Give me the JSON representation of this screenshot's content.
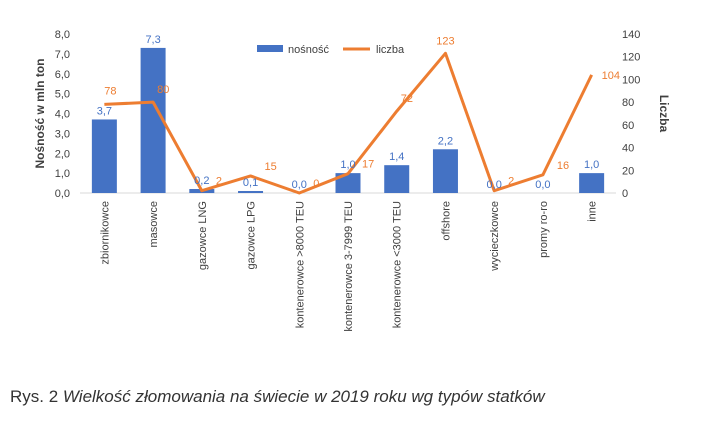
{
  "chart_data": {
    "type": "bar",
    "categories": [
      "zbiornikowce",
      "masowce",
      "gazowce LNG",
      "gazowce LPG",
      "kontenerowce >8000 TEU",
      "kontenerowce  3-7999 TEU",
      "kontenerowce <3000 TEU",
      "offshore",
      "wycieczkowce",
      "promy ro-ro",
      "inne"
    ],
    "series": [
      {
        "name": "nośność",
        "kind": "bar",
        "axis": "left",
        "color": "#4472C4",
        "values": [
          3.7,
          7.3,
          0.2,
          0.1,
          0.0,
          1.0,
          1.4,
          2.2,
          0.0,
          0.0,
          1.0
        ],
        "labels": [
          "3,7",
          "7,3",
          "0,2",
          "0,1",
          "0,0",
          "1,0",
          "1,4",
          "2,2",
          "0,0",
          "0,0",
          "1,0"
        ]
      },
      {
        "name": "liczba",
        "kind": "line",
        "axis": "right",
        "color": "#ED7D31",
        "values": [
          78,
          80,
          2,
          15,
          0,
          17,
          72,
          123,
          2,
          16,
          104
        ],
        "labels": [
          "78",
          "80",
          "2",
          "15",
          "0",
          "17",
          "72",
          "123",
          "2",
          "16",
          "104"
        ]
      }
    ],
    "ylabel": "Nośność w mln ton",
    "y2label": "Liczba",
    "ylim": [
      0,
      8
    ],
    "y2lim": [
      0,
      140
    ],
    "yticks": [
      "0,0",
      "1,0",
      "2,0",
      "3,0",
      "4,0",
      "5,0",
      "6,0",
      "7,0",
      "8,0"
    ],
    "y2ticks": [
      "0",
      "20",
      "40",
      "60",
      "80",
      "100",
      "120",
      "140"
    ],
    "legend": "top-center"
  },
  "caption": {
    "prefix": "Rys. 2 ",
    "title": "Wielkość złomowania na świecie w 2019 roku wg typów statków"
  }
}
